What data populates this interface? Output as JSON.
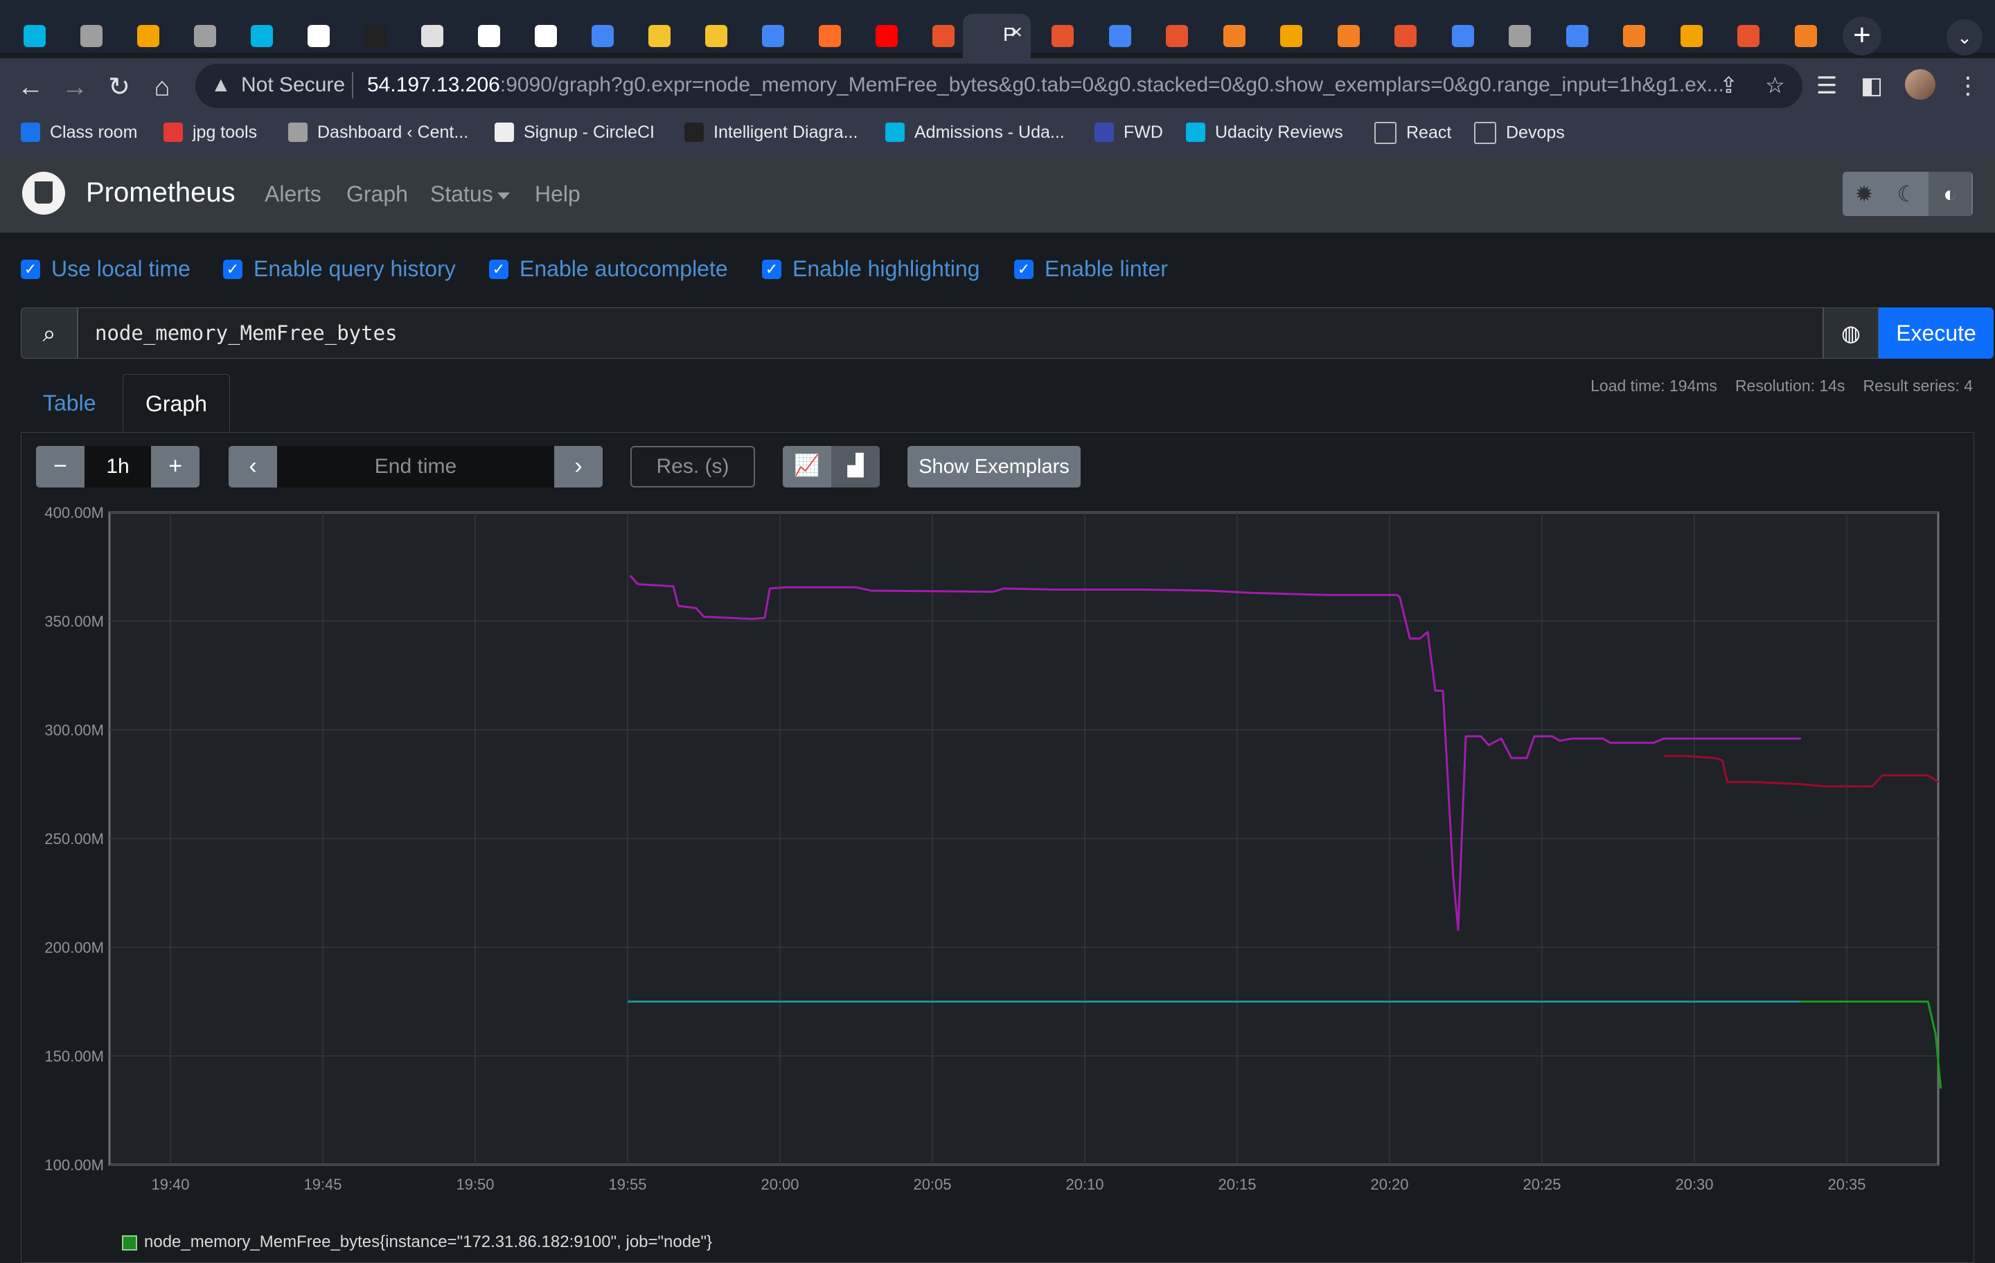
{
  "browser": {
    "active_tab_label": "P",
    "omnibox": {
      "security": "Not Secure",
      "host": "54.197.13.206",
      "path": ":9090/graph?g0.expr=node_memory_MemFree_bytes&g0.tab=0&g0.stacked=0&g0.show_exemplars=0&g0.range_input=1h&g1.ex..."
    },
    "bookmarks": [
      {
        "label": "Class room",
        "color": "#1a73e8"
      },
      {
        "label": "jpg tools",
        "color": "#e53935"
      },
      {
        "label": "Dashboard ‹ Cent...",
        "color": "#9e9e9e"
      },
      {
        "label": "Signup - CircleCI",
        "color": "#eeeeee"
      },
      {
        "label": "Intelligent Diagra...",
        "color": "#212121"
      },
      {
        "label": "Admissions - Uda...",
        "color": "#02b3e4"
      },
      {
        "label": "FWD",
        "color": "#3949ab"
      },
      {
        "label": "Udacity Reviews",
        "color": "#02b3e4"
      },
      {
        "label": "React",
        "color": "#bdbdbd"
      },
      {
        "label": "Devops",
        "color": "#bdbdbd"
      }
    ]
  },
  "prometheus": {
    "brand": "Prometheus",
    "nav": [
      "Alerts",
      "Graph",
      "Status",
      "Help"
    ]
  },
  "options": [
    "Use local time",
    "Enable query history",
    "Enable autocomplete",
    "Enable highlighting",
    "Enable linter"
  ],
  "query": {
    "expression": "node_memory_MemFree_bytes",
    "execute_label": "Execute"
  },
  "tabs": {
    "table": "Table",
    "graph": "Graph"
  },
  "stats": {
    "load_time": "Load time: 194ms",
    "resolution": "Resolution: 14s",
    "result_series": "Result series: 4"
  },
  "graph_controls": {
    "range": "1h",
    "end_time_placeholder": "End time",
    "res_placeholder": "Res. (s)",
    "exemplars_label": "Show Exemplars"
  },
  "legend": {
    "first_entry": "node_memory_MemFree_bytes{instance=\"172.31.86.182:9100\", job=\"node\"}"
  },
  "chart_data": {
    "type": "line",
    "ylim": [
      100,
      400
    ],
    "yunit": "M",
    "y_ticks": [
      "100.00M",
      "150.00M",
      "200.00M",
      "250.00M",
      "300.00M",
      "350.00M",
      "400.00M"
    ],
    "x_ticks": [
      "19:40",
      "19:45",
      "19:50",
      "19:55",
      "20:00",
      "20:05",
      "20:10",
      "20:15",
      "20:20",
      "20:25",
      "20:30",
      "20:35"
    ],
    "x_range_minutes": [
      "19:38",
      "20:38"
    ],
    "series": [
      {
        "color": "#a21caf",
        "points": [
          [
            "19:55:05",
            371
          ],
          [
            "19:55:20",
            367
          ],
          [
            "19:56:30",
            366
          ],
          [
            "19:56:40",
            357
          ],
          [
            "19:57:15",
            356
          ],
          [
            "19:57:30",
            352
          ],
          [
            "19:58:20",
            351.5
          ],
          [
            "19:59:05",
            351
          ],
          [
            "19:59:30",
            351.5
          ],
          [
            "19:59:40",
            365
          ],
          [
            "20:00:10",
            365.5
          ],
          [
            "20:02:30",
            365.5
          ],
          [
            "20:03:00",
            364
          ],
          [
            "20:07:00",
            363.5
          ],
          [
            "20:07:20",
            365
          ],
          [
            "20:09:00",
            364.5
          ],
          [
            "20:12:00",
            364.5
          ],
          [
            "20:14:00",
            364
          ],
          [
            "20:15:30",
            363
          ],
          [
            "20:18:00",
            362
          ],
          [
            "20:20:15",
            362
          ],
          [
            "20:20:20",
            361
          ],
          [
            "20:20:40",
            342
          ],
          [
            "20:21:00",
            342
          ],
          [
            "20:21:15",
            345
          ],
          [
            "20:21:30",
            318
          ],
          [
            "20:21:45",
            318
          ],
          [
            "20:22:05",
            233
          ],
          [
            "20:22:15",
            208
          ],
          [
            "20:22:30",
            297
          ],
          [
            "20:23:00",
            297
          ],
          [
            "20:23:15",
            293
          ],
          [
            "20:23:40",
            296
          ],
          [
            "20:24:00",
            287
          ],
          [
            "20:24:30",
            287
          ],
          [
            "20:24:45",
            297
          ],
          [
            "20:25:20",
            297
          ],
          [
            "20:25:35",
            295
          ],
          [
            "20:26:00",
            296
          ],
          [
            "20:27:00",
            296
          ],
          [
            "20:27:15",
            294
          ],
          [
            "20:28:40",
            294
          ],
          [
            "20:29:00",
            296
          ],
          [
            "20:33:30",
            296
          ]
        ]
      },
      {
        "color": "#9b0b2d",
        "points": [
          [
            "20:29:00",
            288
          ],
          [
            "20:29:40",
            288
          ],
          [
            "20:30:40",
            287
          ],
          [
            "20:30:55",
            286
          ],
          [
            "20:31:05",
            276
          ],
          [
            "20:32:00",
            276
          ],
          [
            "20:33:30",
            275
          ],
          [
            "20:34:15",
            274
          ],
          [
            "20:35:50",
            274
          ],
          [
            "20:36:10",
            279
          ],
          [
            "20:37:40",
            279
          ],
          [
            "20:38:00",
            276
          ]
        ]
      },
      {
        "color": "#1f8f8f",
        "points": [
          [
            "19:55:00",
            175
          ],
          [
            "20:33:30",
            175
          ]
        ]
      },
      {
        "color": "#1a9a1a",
        "points": [
          [
            "20:33:30",
            175
          ],
          [
            "20:37:40",
            175
          ],
          [
            "20:37:55",
            160
          ],
          [
            "20:38:05",
            135
          ]
        ]
      }
    ]
  }
}
